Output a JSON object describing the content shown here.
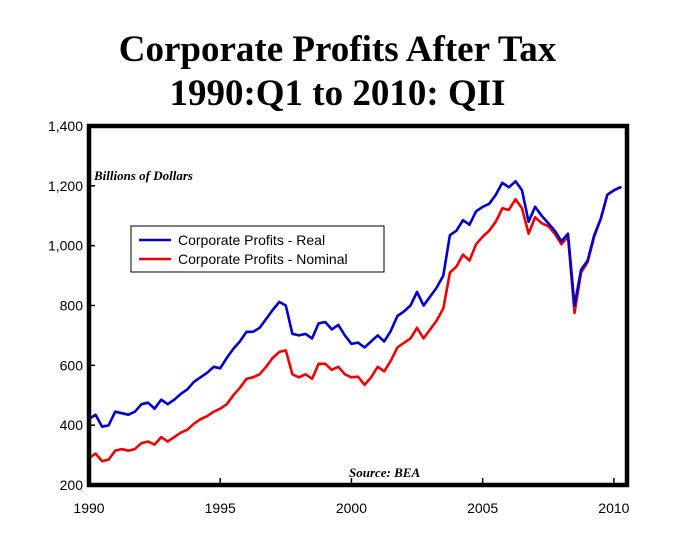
{
  "chart_data": {
    "type": "line",
    "title": "Corporate Profits After Tax",
    "subtitle": "1990:Q1 to 2010: QII",
    "ylabel": "Billions of Dollars",
    "source": "Source: BEA",
    "xlim": [
      1990.0,
      2010.5
    ],
    "ylim": [
      200,
      1400
    ],
    "x_ticks": [
      1990,
      1995,
      2000,
      2005,
      2010
    ],
    "x_tick_labels": [
      "1990",
      "1995",
      "2000",
      "2005",
      "2010"
    ],
    "y_ticks": [
      200,
      400,
      600,
      800,
      1000,
      1200,
      1400
    ],
    "y_tick_labels": [
      "200",
      "400",
      "600",
      "800",
      "1,000",
      "1,200",
      "1,400"
    ],
    "legend_position": "upper-left",
    "x": [
      1990.0,
      1990.25,
      1990.5,
      1990.75,
      1991.0,
      1991.25,
      1991.5,
      1991.75,
      1992.0,
      1992.25,
      1992.5,
      1992.75,
      1993.0,
      1993.25,
      1993.5,
      1993.75,
      1994.0,
      1994.25,
      1994.5,
      1994.75,
      1995.0,
      1995.25,
      1995.5,
      1995.75,
      1996.0,
      1996.25,
      1996.5,
      1996.75,
      1997.0,
      1997.25,
      1997.5,
      1997.75,
      1998.0,
      1998.25,
      1998.5,
      1998.75,
      1999.0,
      1999.25,
      1999.5,
      1999.75,
      2000.0,
      2000.25,
      2000.5,
      2000.75,
      2001.0,
      2001.25,
      2001.5,
      2001.75,
      2002.0,
      2002.25,
      2002.5,
      2002.75,
      2003.0,
      2003.25,
      2003.5,
      2003.75,
      2004.0,
      2004.25,
      2004.5,
      2004.75,
      2005.0,
      2005.25,
      2005.5,
      2005.75,
      2006.0,
      2006.25,
      2006.5,
      2006.75,
      2007.0,
      2007.25,
      2007.5,
      2007.75,
      2008.0,
      2008.25,
      2008.5,
      2008.75,
      2009.0,
      2009.25,
      2009.5,
      2009.75,
      2010.0,
      2010.25
    ],
    "series": [
      {
        "name": "Corporate Profits - Real",
        "color": "#0000cc",
        "values": [
          420,
          435,
          395,
          400,
          445,
          440,
          435,
          445,
          470,
          475,
          455,
          485,
          470,
          485,
          505,
          520,
          545,
          560,
          575,
          595,
          590,
          625,
          655,
          680,
          712,
          712,
          725,
          755,
          785,
          812,
          800,
          705,
          700,
          705,
          690,
          740,
          745,
          720,
          735,
          700,
          672,
          676,
          660,
          680,
          700,
          680,
          715,
          765,
          780,
          800,
          845,
          800,
          830,
          860,
          900,
          1035,
          1050,
          1085,
          1070,
          1115,
          1130,
          1140,
          1170,
          1210,
          1195,
          1215,
          1185,
          1080,
          1130,
          1100,
          1075,
          1050,
          1015,
          1040,
          800,
          920,
          950,
          1035,
          1090,
          1170,
          1185,
          1195
        ]
      },
      {
        "name": "Corporate Profits - Nominal",
        "color": "#ee0000",
        "values": [
          290,
          305,
          280,
          285,
          315,
          320,
          315,
          320,
          340,
          345,
          335,
          360,
          345,
          360,
          375,
          385,
          405,
          420,
          430,
          445,
          455,
          470,
          500,
          525,
          555,
          560,
          570,
          595,
          625,
          645,
          650,
          570,
          560,
          570,
          555,
          605,
          605,
          585,
          595,
          570,
          560,
          562,
          535,
          560,
          595,
          580,
          615,
          660,
          675,
          690,
          725,
          690,
          720,
          750,
          790,
          910,
          930,
          970,
          950,
          1005,
          1030,
          1050,
          1080,
          1125,
          1120,
          1155,
          1125,
          1040,
          1095,
          1075,
          1065,
          1040,
          1005,
          1030,
          775,
          910,
          945,
          1030,
          1090,
          1170,
          1185,
          1195
        ]
      }
    ]
  }
}
